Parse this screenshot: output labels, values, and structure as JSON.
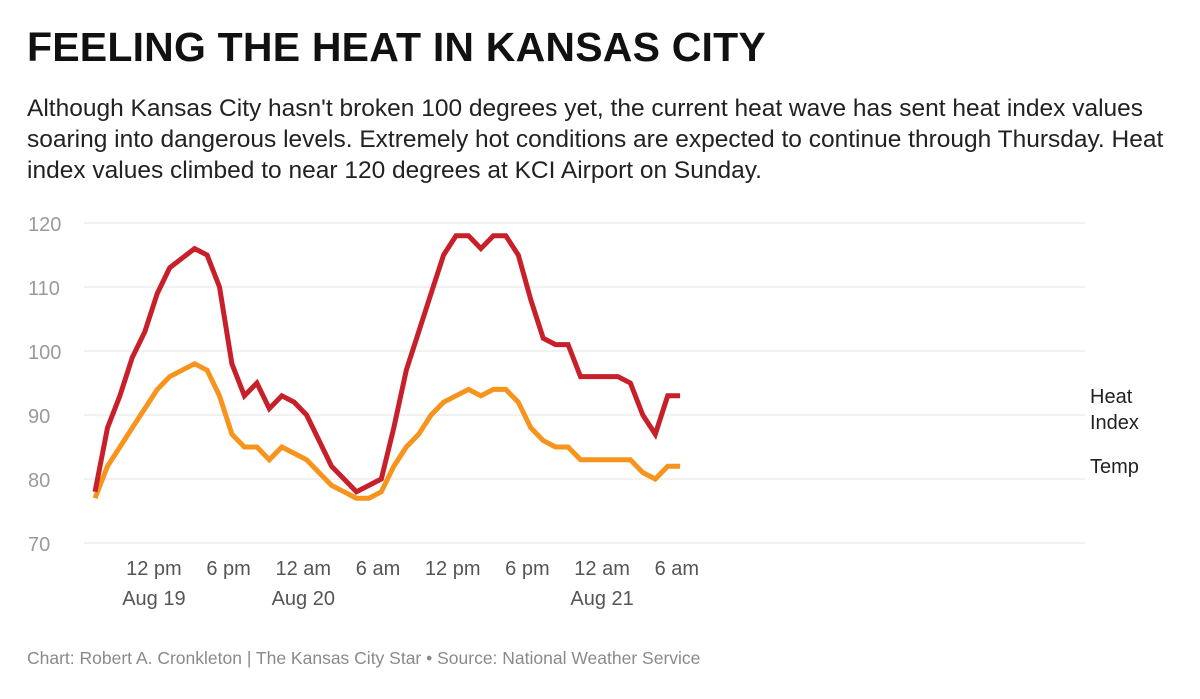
{
  "title": "FEELING THE HEAT IN KANSAS CITY",
  "description": "Although Kansas City hasn't broken 100 degrees yet, the current heat wave has sent heat index values soaring into dangerous levels. Extremely hot conditions are expected to continue through Thursday. Heat index values climbed to near 120 degrees at KCI Airport on Sunday.",
  "credit": "Chart: Robert A. Cronkleton | The Kansas City Star • Source: National Weather Service",
  "chart_data": {
    "type": "line",
    "ylim": [
      70,
      120
    ],
    "yticks": [
      70,
      80,
      90,
      100,
      110,
      120
    ],
    "xlim": [
      0,
      39.5
    ],
    "x_ticks": [
      {
        "x": 2.5,
        "line1": "12 pm",
        "line2": "Aug 19"
      },
      {
        "x": 8.5,
        "line1": "6 pm",
        "line2": ""
      },
      {
        "x": 14.5,
        "line1": "12 am",
        "line2": "Aug 20"
      },
      {
        "x": 20.5,
        "line1": "6 am",
        "line2": ""
      },
      {
        "x": 26.5,
        "line1": "12 pm",
        "line2": ""
      },
      {
        "x": 32.5,
        "line1": "6 pm",
        "line2": ""
      },
      {
        "x": 38.5,
        "line1": "12 am",
        "line2": "Aug 21"
      },
      {
        "x": 44.5,
        "line1": "6 am",
        "line2": ""
      }
    ],
    "x_hours": [
      0,
      1,
      2,
      3,
      4,
      5,
      6,
      7,
      8,
      9,
      10,
      11,
      12,
      13,
      14,
      15,
      16,
      17,
      18,
      19,
      20,
      21,
      22,
      23,
      24,
      25,
      26,
      27,
      28,
      29,
      30,
      31,
      32,
      33,
      34,
      35,
      36,
      37,
      38,
      39,
      40,
      41,
      42,
      43,
      44,
      45,
      46,
      47
    ],
    "series": [
      {
        "name": "Heat Index",
        "legend": [
          "Heat",
          "Index"
        ],
        "color": "#c8202a",
        "values": [
          78,
          88,
          93,
          99,
          103,
          109,
          113,
          114.5,
          116,
          115,
          110,
          98,
          93,
          95,
          91,
          93,
          92,
          90,
          86,
          82,
          80,
          78,
          79,
          80,
          88,
          97,
          103,
          109,
          115,
          118,
          118,
          116,
          118,
          118,
          115,
          108,
          102,
          101,
          101,
          96,
          96,
          96,
          96,
          95,
          90,
          87,
          93,
          93
        ]
      },
      {
        "name": "Temp",
        "legend": [
          "Temp"
        ],
        "color": "#f7941d",
        "values": [
          77,
          82,
          85,
          88,
          91,
          94,
          96,
          97,
          98,
          97,
          93,
          87,
          85,
          85,
          83,
          85,
          84,
          83,
          81,
          79,
          78,
          77,
          77,
          78,
          82,
          85,
          87,
          90,
          92,
          93,
          94,
          93,
          94,
          94,
          92,
          88,
          86,
          85,
          85,
          83,
          83,
          83,
          83,
          83,
          81,
          80,
          82,
          82
        ]
      }
    ],
    "grid": true
  }
}
